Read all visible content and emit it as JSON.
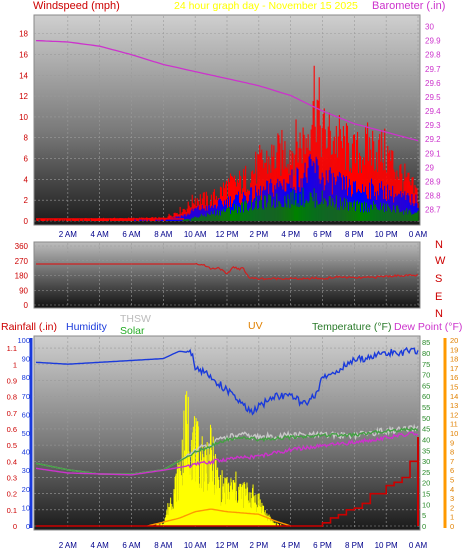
{
  "header": {
    "windspeed_label": "Windspeed (mph)",
    "title": "24 hour graph day - November 15 2025",
    "barometer_label": "Barometer (.in)"
  },
  "lower_header": {
    "rainfall_label": "Rainfall (.in)",
    "humidity_label": "Humidity",
    "thsw_label": "THSW",
    "solar_label": "Solar",
    "uv_label": "UV",
    "temperature_label": "Temperature (°F)",
    "dewpoint_label": "Dew Point (°F)"
  },
  "colors": {
    "windspeed": "#ff0000",
    "gust": "#ff0000",
    "wind_avg": "#0000ff",
    "wind_low": "#008000",
    "barometer": "#cc33cc",
    "direction": "#d02020",
    "humidity": "#1a3adb",
    "thsw": "#c8c8c8",
    "solar": "#ffff00",
    "uv": "#ff9900",
    "temperature": "#43a043",
    "dewpoint": "#cc33cc",
    "rain": "#cc0000",
    "title": "#ffff00"
  },
  "chart_data": [
    {
      "type": "line",
      "name": "wind-barometer",
      "x_ticks": [
        "2 AM",
        "4 AM",
        "6 AM",
        "8 AM",
        "10 AM",
        "12 PM",
        "2 PM",
        "4 PM",
        "6 PM",
        "8 PM",
        "10 PM",
        "0 AM"
      ],
      "left_axis": {
        "label": "Windspeed (mph)",
        "ticks": [
          0,
          2,
          4,
          6,
          8,
          10,
          12,
          14,
          16,
          18
        ],
        "ylim": [
          0,
          19.5
        ]
      },
      "right_axis": {
        "label": "Barometer (.in)",
        "ticks": [
          "28.7",
          "28.8",
          "28.9",
          "29",
          "29.1",
          "29.2",
          "29.3",
          "29.4",
          "29.5",
          "29.6",
          "29.7",
          "29.8",
          "29.9",
          "30"
        ],
        "ylim": [
          28.62,
          30.06
        ]
      },
      "barometer": {
        "hours": [
          0,
          2,
          4,
          6,
          8,
          10,
          12,
          14,
          16,
          18,
          20,
          22,
          24
        ],
        "values": [
          29.9,
          29.89,
          29.86,
          29.8,
          29.73,
          29.68,
          29.63,
          29.58,
          29.51,
          29.4,
          29.31,
          29.25,
          29.19
        ]
      },
      "gust_envelope": {
        "hours": [
          0,
          8,
          9.5,
          10,
          11,
          12,
          13,
          14,
          15,
          16,
          17,
          17.5,
          18,
          19,
          20,
          21,
          22,
          23,
          24
        ],
        "values": [
          0.2,
          0.4,
          1.8,
          3,
          2.8,
          4.6,
          5.2,
          7.3,
          8.4,
          9.4,
          10.8,
          17.2,
          11.5,
          10.7,
          8.6,
          9.8,
          8.9,
          6,
          3.5
        ]
      },
      "avg_envelope": {
        "hours": [
          0,
          8,
          9.5,
          10,
          11,
          12,
          13,
          14,
          15,
          16,
          17,
          17.5,
          18,
          19,
          20,
          21,
          22,
          23,
          24
        ],
        "values": [
          0,
          0.2,
          0.8,
          1.5,
          1.8,
          2.5,
          3,
          3.5,
          4.4,
          5,
          6,
          7,
          5.5,
          4.8,
          4,
          4.1,
          3.8,
          3,
          2.5
        ]
      },
      "low_envelope": {
        "hours": [
          0,
          8,
          9.5,
          10,
          11,
          12,
          13,
          14,
          15,
          16,
          17,
          18,
          19,
          20,
          21,
          22,
          23,
          24
        ],
        "values": [
          0,
          0,
          0.2,
          0.5,
          1,
          1.5,
          2,
          2.4,
          2.7,
          3,
          3.3,
          3,
          2.5,
          2,
          2,
          1.8,
          1.5,
          1
        ]
      }
    },
    {
      "type": "line",
      "name": "wind-direction",
      "x_ticks": [],
      "left_ticks": [
        "360",
        "270",
        "180",
        "90",
        "0"
      ],
      "ylim": [
        0,
        360
      ],
      "compass_labels": [
        "N",
        "W",
        "S",
        "E",
        "N"
      ],
      "direction": {
        "hours": [
          0,
          6,
          9,
          10,
          10.6,
          11,
          11.5,
          12,
          12.4,
          12.8,
          13,
          13.4,
          14,
          16,
          17,
          17.5,
          18,
          19,
          20,
          21,
          22,
          23,
          24
        ],
        "values": [
          250,
          250,
          250,
          250,
          245,
          220,
          228,
          185,
          235,
          215,
          230,
          165,
          160,
          162,
          158,
          165,
          160,
          172,
          165,
          168,
          175,
          180,
          180
        ]
      }
    },
    {
      "type": "line",
      "name": "temperature-humidity-rain",
      "x_ticks": [
        "2 AM",
        "4 AM",
        "6 AM",
        "8 AM",
        "10 AM",
        "12 PM",
        "2 PM",
        "4 PM",
        "6 PM",
        "8 PM",
        "10 PM",
        "0 AM"
      ],
      "rain_axis": {
        "ticks": [
          "0",
          "0.1",
          "0.2",
          "0.3",
          "0.4",
          "0.5",
          "0.6",
          "0.7",
          "0.8",
          "0.9",
          "1",
          "1.1"
        ],
        "ylim": [
          0,
          1.15
        ]
      },
      "humidity_axis": {
        "ticks": [
          "0",
          "10",
          "20",
          "30",
          "40",
          "50",
          "60",
          "70",
          "80",
          "90",
          "100"
        ],
        "ylim": [
          0,
          100
        ]
      },
      "temperature_axis": {
        "ticks": [
          "0",
          "5",
          "10",
          "15",
          "20",
          "25",
          "30",
          "35",
          "40",
          "45",
          "50",
          "55",
          "60",
          "65",
          "70",
          "75",
          "80",
          "85"
        ],
        "ylim": [
          0,
          86
        ]
      },
      "dewpoint_axis": {
        "ticks": [
          "0",
          "1",
          "2",
          "3",
          "4",
          "5",
          "6",
          "7",
          "8",
          "9",
          "10",
          "11",
          "12",
          "13",
          "14",
          "15",
          "16",
          "17",
          "18",
          "19",
          "20"
        ],
        "ylim": [
          0,
          20
        ]
      },
      "humidity": {
        "hours": [
          0,
          2,
          4,
          6,
          8,
          9,
          9.8,
          10,
          11,
          12,
          13,
          13.5,
          14,
          15,
          16,
          17,
          17.5,
          18,
          20,
          22,
          24
        ],
        "values": [
          88,
          87,
          88,
          89,
          90,
          94,
          93,
          86,
          80,
          73,
          65,
          61,
          64,
          70,
          70,
          65,
          70,
          79,
          89,
          93,
          94
        ]
      },
      "temperature": {
        "hours": [
          0,
          2,
          4,
          6,
          8,
          9,
          10,
          11,
          12,
          13,
          14,
          16,
          18,
          20,
          22,
          24
        ],
        "values": [
          29,
          26,
          24,
          24,
          26,
          30,
          34,
          37,
          40,
          41,
          40,
          41,
          42,
          42,
          44,
          45
        ]
      },
      "thsw": {
        "hours": [
          0,
          2,
          4,
          6,
          8,
          9,
          10,
          11,
          12,
          13,
          14,
          16,
          18,
          20,
          22,
          24
        ],
        "values": [
          29,
          26,
          24,
          24,
          26,
          30,
          35,
          38,
          41,
          42,
          41,
          42,
          42,
          42,
          44,
          45
        ]
      },
      "dewpoint": {
        "hours": [
          0,
          2,
          4,
          6,
          8,
          10,
          12,
          14,
          16,
          18,
          20,
          22,
          24
        ],
        "values": [
          6.2,
          5.7,
          5.6,
          5.5,
          6,
          6.6,
          7.2,
          7.5,
          8.2,
          8.6,
          9,
          9.5,
          10
        ]
      },
      "solar": {
        "hours": [
          7,
          8,
          9,
          9.5,
          10,
          10.5,
          11,
          11.5,
          12,
          12.5,
          13,
          13.5,
          14,
          14.5,
          15,
          16
        ],
        "values": [
          0,
          0.02,
          0.4,
          0.8,
          0.6,
          0.5,
          0.55,
          0.32,
          0.28,
          0.3,
          0.26,
          0.24,
          0.2,
          0.08,
          0.02,
          0
        ]
      },
      "uv": {
        "hours": [
          7,
          9,
          10,
          11,
          12,
          13,
          14,
          15,
          16
        ],
        "values": [
          0,
          0.3,
          0.55,
          0.65,
          0.55,
          0.5,
          0.45,
          0.2,
          0
        ]
      },
      "rainfall": {
        "hours": [
          0,
          17.5,
          18,
          18.5,
          19,
          19.5,
          20,
          20.5,
          21,
          22,
          22.5,
          23,
          23.5,
          24
        ],
        "values": [
          0,
          0,
          0.02,
          0.05,
          0.07,
          0.1,
          0.11,
          0.14,
          0.2,
          0.25,
          0.27,
          0.3,
          0.4,
          0.55
        ]
      }
    }
  ]
}
